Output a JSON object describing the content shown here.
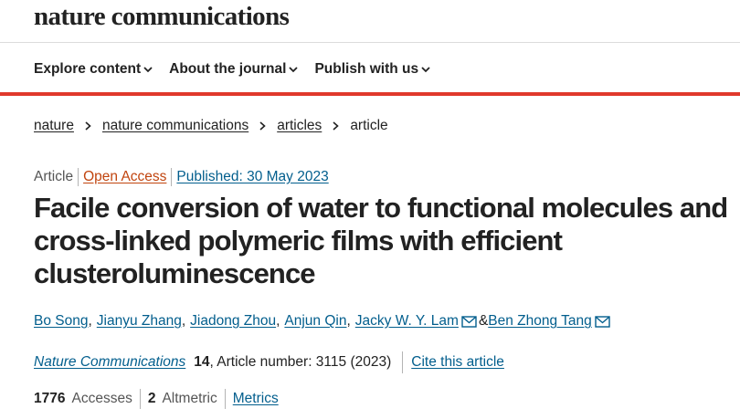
{
  "site": {
    "logo": "nature communications"
  },
  "nav": {
    "items": [
      {
        "label": "Explore content"
      },
      {
        "label": "About the journal"
      },
      {
        "label": "Publish with us"
      }
    ]
  },
  "breadcrumb": {
    "items": [
      {
        "label": "nature"
      },
      {
        "label": "nature communications"
      },
      {
        "label": "articles"
      }
    ],
    "current": "article"
  },
  "article": {
    "type": "Article",
    "access": "Open Access",
    "published": "Published: 30 May 2023",
    "title": "Facile conversion of water to functional molecules and cross-linked polymeric films with efficient clusteroluminescence",
    "authors": [
      {
        "name": "Bo Song",
        "sep": ","
      },
      {
        "name": "Jianyu Zhang",
        "sep": ","
      },
      {
        "name": "Jiadong Zhou",
        "sep": ","
      },
      {
        "name": "Anjun Qin",
        "sep": ","
      },
      {
        "name": "Jacky W. Y. Lam",
        "sep": "&"
      },
      {
        "name": "Ben Zhong Tang",
        "sep": ""
      }
    ]
  },
  "citation": {
    "journal": "Nature Communications",
    "volume": "14",
    "article_number": ", Article number: 3115 (2023)",
    "cite_label": "Cite this article"
  },
  "metrics": {
    "accesses_count": "1776",
    "accesses_label": "Accesses",
    "altmetric_count": "2",
    "altmetric_label": "Altmetric",
    "metrics_link": "Metrics"
  },
  "colors": {
    "accent_red": "#e0392c",
    "link_blue": "#025e8d",
    "open_access_orange": "#c1440e",
    "text": "#222222"
  },
  "icons": [
    "chevron-down-icon",
    "chevron-right-icon",
    "mail-icon"
  ]
}
